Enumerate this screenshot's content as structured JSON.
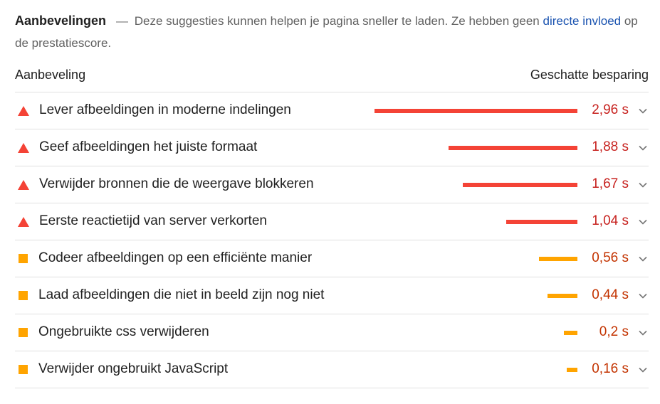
{
  "section": {
    "title": "Aanbevelingen",
    "dash": "—",
    "description_before": "Deze suggesties kunnen helpen je pagina sneller te laden. Ze hebben geen",
    "link_text": "directe invloed",
    "description_after": "op de prestatiescore."
  },
  "table": {
    "column_left": "Aanbeveling",
    "column_right": "Geschatte besparing"
  },
  "colors": {
    "fail": "#f44336",
    "fail_text": "#c7221f",
    "average": "#ffa400",
    "average_text": "#c33300",
    "link": "#1a53b0"
  },
  "max_savings_s": 2.96,
  "opportunities": [
    {
      "label": "Lever afbeeldingen in moderne indelingen",
      "savings": "2,96 s",
      "savings_s": 2.96,
      "severity": "fail",
      "icon": "triangle-warning-icon"
    },
    {
      "label": "Geef afbeeldingen het juiste formaat",
      "savings": "1,88 s",
      "savings_s": 1.88,
      "severity": "fail",
      "icon": "triangle-warning-icon"
    },
    {
      "label": "Verwijder bronnen die de weergave blokkeren",
      "savings": "1,67 s",
      "savings_s": 1.67,
      "severity": "fail",
      "icon": "triangle-warning-icon"
    },
    {
      "label": "Eerste reactietijd van server verkorten",
      "savings": "1,04 s",
      "savings_s": 1.04,
      "severity": "fail",
      "icon": "triangle-warning-icon"
    },
    {
      "label": "Codeer afbeeldingen op een efficiënte manier",
      "savings": "0,56 s",
      "savings_s": 0.56,
      "severity": "average",
      "icon": "square-average-icon"
    },
    {
      "label": "Laad afbeeldingen die niet in beeld zijn nog niet",
      "savings": "0,44 s",
      "savings_s": 0.44,
      "severity": "average",
      "icon": "square-average-icon"
    },
    {
      "label": "Ongebruikte css verwijderen",
      "savings": "0,2 s",
      "savings_s": 0.2,
      "severity": "average",
      "icon": "square-average-icon"
    },
    {
      "label": "Verwijder ongebruikt JavaScript",
      "savings": "0,16 s",
      "savings_s": 0.16,
      "severity": "average",
      "icon": "square-average-icon"
    }
  ]
}
